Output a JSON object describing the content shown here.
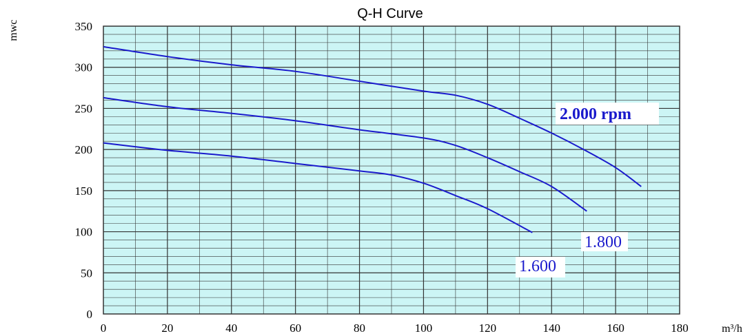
{
  "chart_data": {
    "type": "line",
    "title": "Q-H Curve",
    "xlabel": "m³/h",
    "ylabel": "mwc",
    "xlim": [
      0,
      180
    ],
    "ylim": [
      0,
      350
    ],
    "x_ticks": [
      0,
      20,
      40,
      60,
      80,
      100,
      120,
      140,
      160,
      180
    ],
    "y_ticks": [
      0,
      50,
      100,
      150,
      200,
      250,
      300,
      350
    ],
    "grid": true,
    "colors": {
      "plot_bg": "#ccf5f5",
      "grid": "#333333",
      "line": "#1a1acc"
    },
    "series": [
      {
        "name": "2.000 rpm",
        "points": [
          [
            0,
            325
          ],
          [
            20,
            313
          ],
          [
            40,
            303
          ],
          [
            60,
            295
          ],
          [
            80,
            283
          ],
          [
            100,
            271
          ],
          [
            110,
            266
          ],
          [
            120,
            255
          ],
          [
            130,
            238
          ],
          [
            140,
            220
          ],
          [
            150,
            200
          ],
          [
            160,
            178
          ],
          [
            168,
            155
          ]
        ]
      },
      {
        "name": "1.800",
        "points": [
          [
            0,
            263
          ],
          [
            20,
            252
          ],
          [
            40,
            244
          ],
          [
            60,
            235
          ],
          [
            80,
            224
          ],
          [
            100,
            214
          ],
          [
            110,
            205
          ],
          [
            120,
            190
          ],
          [
            130,
            173
          ],
          [
            140,
            155
          ],
          [
            151,
            125
          ]
        ]
      },
      {
        "name": "1.600",
        "points": [
          [
            0,
            208
          ],
          [
            20,
            199
          ],
          [
            40,
            192
          ],
          [
            60,
            183
          ],
          [
            80,
            174
          ],
          [
            90,
            169
          ],
          [
            100,
            159
          ],
          [
            110,
            144
          ],
          [
            120,
            128
          ],
          [
            134,
            99
          ]
        ]
      }
    ]
  }
}
